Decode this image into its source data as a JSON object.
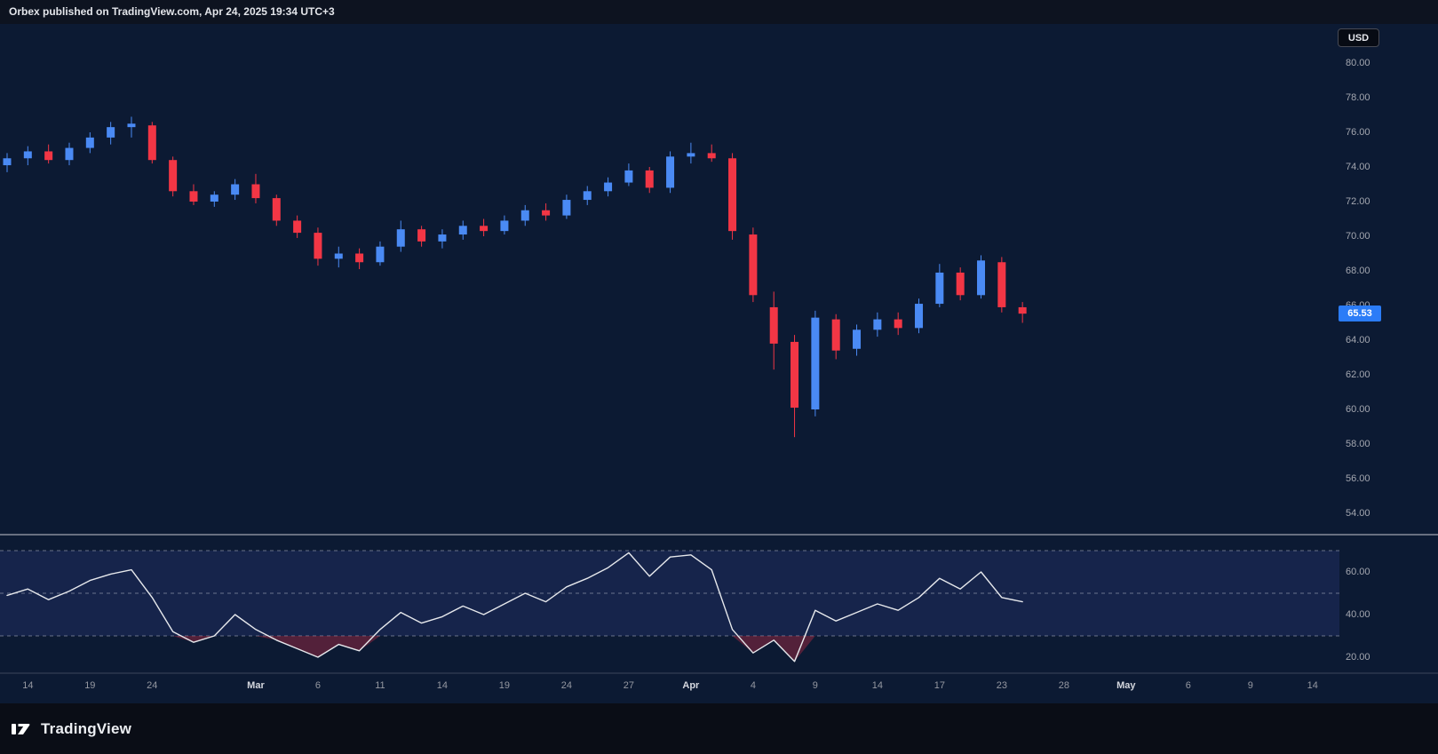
{
  "header": {
    "title": "Orbex published on TradingView.com, Apr 24, 2025 19:34 UTC+3"
  },
  "price_axis": {
    "currency": "USD",
    "ticks": [
      80,
      78,
      76,
      74,
      72,
      70,
      68,
      66,
      64,
      62,
      60,
      58,
      56,
      54
    ]
  },
  "footer": {
    "brand": "TradingView"
  },
  "chart_data": {
    "type": "candlestick",
    "title": "",
    "last_price": 65.53,
    "last_price_label": "65.53",
    "colors": {
      "up": "#4a8af4",
      "down": "#f23645",
      "rsi_line": "#e6e8ec",
      "last_price_badge": "#2b7cf7",
      "background": "#0c1a33"
    },
    "x_axis": {
      "labels": [
        {
          "label": "14",
          "index": 1,
          "major": false
        },
        {
          "label": "19",
          "index": 4,
          "major": false
        },
        {
          "label": "24",
          "index": 7,
          "major": false
        },
        {
          "label": "Mar",
          "index": 12,
          "major": true
        },
        {
          "label": "6",
          "index": 15,
          "major": false
        },
        {
          "label": "11",
          "index": 18,
          "major": false
        },
        {
          "label": "14",
          "index": 21,
          "major": false
        },
        {
          "label": "19",
          "index": 24,
          "major": false
        },
        {
          "label": "24",
          "index": 27,
          "major": false
        },
        {
          "label": "27",
          "index": 30,
          "major": false
        },
        {
          "label": "Apr",
          "index": 33,
          "major": true
        },
        {
          "label": "4",
          "index": 36,
          "major": false
        },
        {
          "label": "9",
          "index": 39,
          "major": false
        },
        {
          "label": "14",
          "index": 42,
          "major": false
        },
        {
          "label": "17",
          "index": 45,
          "major": false
        },
        {
          "label": "23",
          "index": 48,
          "major": false
        },
        {
          "label": "28",
          "index": 51,
          "major": false
        },
        {
          "label": "May",
          "index": 54,
          "major": true
        },
        {
          "label": "6",
          "index": 57,
          "major": false
        },
        {
          "label": "9",
          "index": 60,
          "major": false
        },
        {
          "label": "14",
          "index": 63,
          "major": false
        }
      ]
    },
    "price_pane": {
      "ylim": [
        53,
        81.5
      ],
      "tick_step": 2,
      "columns": [
        "date",
        "open",
        "high",
        "low",
        "close"
      ],
      "candles": [
        [
          "Feb 13",
          74.1,
          74.8,
          73.7,
          74.5
        ],
        [
          "Feb 14",
          74.5,
          75.2,
          74.1,
          74.9
        ],
        [
          "Feb 17",
          74.9,
          75.3,
          74.2,
          74.4
        ],
        [
          "Feb 18",
          74.4,
          75.4,
          74.1,
          75.1
        ],
        [
          "Feb 19",
          75.1,
          76.0,
          74.8,
          75.7
        ],
        [
          "Feb 20",
          75.7,
          76.6,
          75.3,
          76.3
        ],
        [
          "Feb 21",
          76.3,
          76.9,
          75.7,
          76.5
        ],
        [
          "Feb 24",
          76.4,
          76.6,
          74.2,
          74.4
        ],
        [
          "Feb 25",
          74.4,
          74.6,
          72.3,
          72.6
        ],
        [
          "Feb 26",
          72.6,
          73.0,
          71.8,
          72.0
        ],
        [
          "Feb 27",
          72.0,
          72.6,
          71.7,
          72.4
        ],
        [
          "Feb 28",
          72.4,
          73.3,
          72.1,
          73.0
        ],
        [
          "Mar 3",
          73.0,
          73.6,
          71.9,
          72.2
        ],
        [
          "Mar 4",
          72.2,
          72.4,
          70.6,
          70.9
        ],
        [
          "Mar 5",
          70.9,
          71.2,
          69.9,
          70.2
        ],
        [
          "Mar 6",
          70.2,
          70.5,
          68.3,
          68.7
        ],
        [
          "Mar 7",
          68.7,
          69.4,
          68.2,
          69.0
        ],
        [
          "Mar 10",
          69.0,
          69.3,
          68.1,
          68.5
        ],
        [
          "Mar 11",
          68.5,
          69.7,
          68.3,
          69.4
        ],
        [
          "Mar 12",
          69.4,
          70.9,
          69.1,
          70.4
        ],
        [
          "Mar 13",
          70.4,
          70.6,
          69.4,
          69.7
        ],
        [
          "Mar 14",
          69.7,
          70.4,
          69.3,
          70.1
        ],
        [
          "Mar 17",
          70.1,
          70.9,
          69.8,
          70.6
        ],
        [
          "Mar 18",
          70.6,
          71.0,
          70.0,
          70.3
        ],
        [
          "Mar 19",
          70.3,
          71.2,
          70.1,
          70.9
        ],
        [
          "Mar 20",
          70.9,
          71.8,
          70.6,
          71.5
        ],
        [
          "Mar 21",
          71.5,
          71.9,
          70.9,
          71.2
        ],
        [
          "Mar 24",
          71.2,
          72.4,
          71.0,
          72.1
        ],
        [
          "Mar 25",
          72.1,
          72.9,
          71.8,
          72.6
        ],
        [
          "Mar 26",
          72.6,
          73.4,
          72.3,
          73.1
        ],
        [
          "Mar 27",
          73.1,
          74.2,
          72.9,
          73.8
        ],
        [
          "Mar 28",
          73.8,
          74.0,
          72.5,
          72.8
        ],
        [
          "Mar 31",
          72.8,
          74.9,
          72.5,
          74.6
        ],
        [
          "Apr 1",
          74.6,
          75.4,
          74.2,
          74.8
        ],
        [
          "Apr 2",
          74.8,
          75.3,
          74.3,
          74.5
        ],
        [
          "Apr 3",
          74.5,
          74.8,
          69.8,
          70.3
        ],
        [
          "Apr 4",
          70.1,
          70.5,
          66.2,
          66.6
        ],
        [
          "Apr 7",
          65.9,
          66.8,
          62.3,
          63.8
        ],
        [
          "Apr 8",
          63.9,
          64.3,
          58.4,
          60.1
        ],
        [
          "Apr 9",
          60.0,
          65.7,
          59.6,
          65.3
        ],
        [
          "Apr 10",
          65.2,
          65.5,
          62.9,
          63.4
        ],
        [
          "Apr 11",
          63.5,
          64.9,
          63.1,
          64.6
        ],
        [
          "Apr 14",
          64.6,
          65.6,
          64.2,
          65.2
        ],
        [
          "Apr 15",
          65.2,
          65.6,
          64.3,
          64.7
        ],
        [
          "Apr 16",
          64.7,
          66.4,
          64.4,
          66.1
        ],
        [
          "Apr 17",
          66.1,
          68.4,
          65.9,
          67.9
        ],
        [
          "Apr 21",
          67.9,
          68.2,
          66.3,
          66.6
        ],
        [
          "Apr 22",
          66.6,
          68.9,
          66.4,
          68.6
        ],
        [
          "Apr 23",
          68.5,
          68.8,
          65.6,
          65.9
        ],
        [
          "Apr 24",
          65.9,
          66.2,
          65.0,
          65.53
        ]
      ]
    },
    "rsi_pane": {
      "ylim": [
        12,
        76
      ],
      "values": [
        49,
        52,
        47,
        51,
        56,
        59,
        61,
        48,
        32,
        27,
        30,
        40,
        33,
        28,
        24,
        20,
        26,
        23,
        33,
        41,
        36,
        39,
        44,
        40,
        45,
        50,
        46,
        53,
        57,
        62,
        69,
        58,
        67,
        68,
        61,
        33,
        22,
        28,
        18,
        42,
        37,
        41,
        45,
        42,
        48,
        57,
        52,
        60,
        48,
        46
      ],
      "levels": [
        70,
        50,
        30
      ],
      "ticks": [
        60,
        40,
        20
      ],
      "fill_below": 30
    }
  }
}
